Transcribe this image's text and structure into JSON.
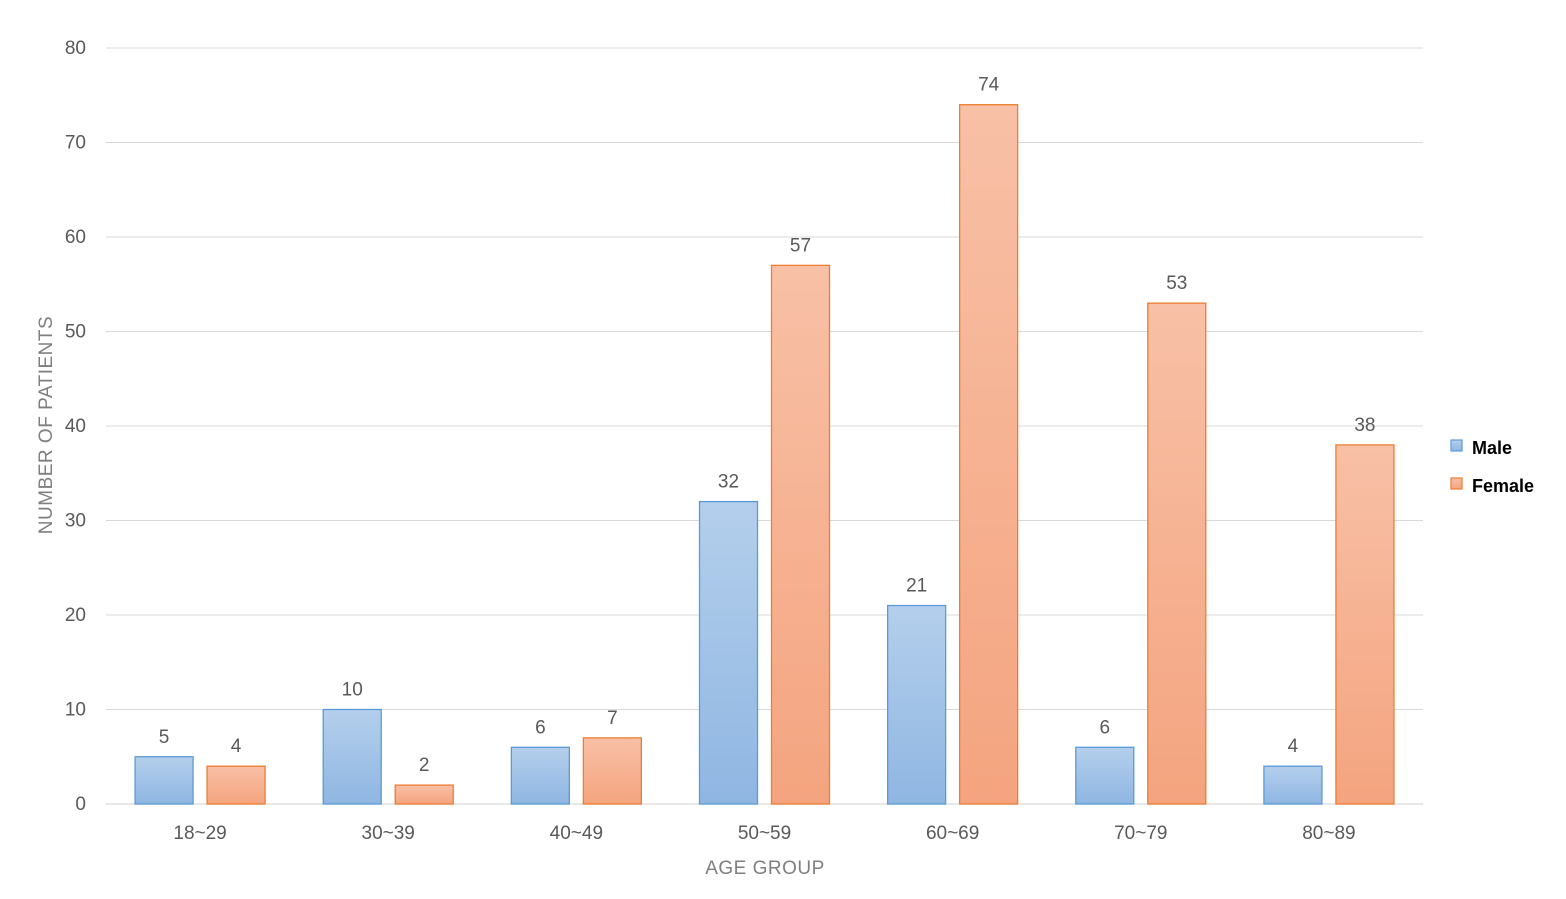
{
  "chart_data": {
    "type": "bar",
    "title": "",
    "xlabel": "AGE GROUP",
    "ylabel": "NUMBER OF PATIENTS",
    "ylim": [
      0,
      80
    ],
    "yticks": [
      "0",
      "10",
      "20",
      "30",
      "40",
      "50",
      "60",
      "70",
      "80"
    ],
    "grid": true,
    "legend_position": "right",
    "categories": [
      "18~29",
      "30~39",
      "40~49",
      "50~59",
      "60~69",
      "70~79",
      "80~89"
    ],
    "series": [
      {
        "name": "Male",
        "values": [
          5,
          10,
          6,
          32,
          21,
          6,
          4
        ],
        "color": "#9dc3e6",
        "stroke": "#5b9bd5"
      },
      {
        "name": "Female",
        "values": [
          4,
          2,
          7,
          57,
          74,
          53,
          38
        ],
        "color": "#f4b183",
        "stroke": "#ed7d31"
      }
    ]
  }
}
